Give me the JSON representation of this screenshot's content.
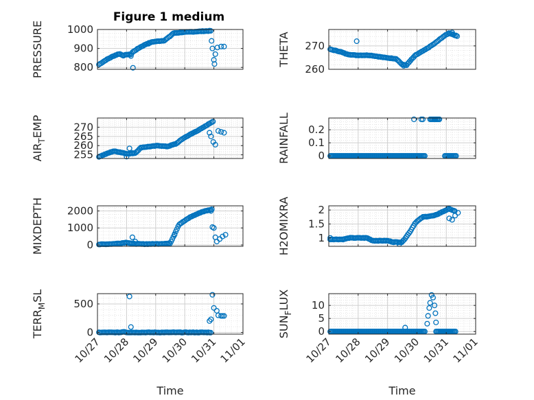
{
  "figure": {
    "title": "Figure 1 medium",
    "marker_color": "#0072BD",
    "x_axis_label": "Time",
    "x_ticks": [
      "10/27",
      "10/28",
      "10/29",
      "10/30",
      "10/31",
      "11/01"
    ]
  },
  "chart_data": [
    {
      "type": "scatter",
      "ylabel": "PRESSURE",
      "title": "Figure 1 medium",
      "xlim": [
        0,
        5
      ],
      "ylim": [
        790,
        1000
      ],
      "yticks": [
        800,
        900,
        1000
      ],
      "anchors": [
        [
          0.05,
          815
        ],
        [
          0.3,
          840
        ],
        [
          0.55,
          860
        ],
        [
          0.75,
          872
        ],
        [
          0.9,
          862
        ],
        [
          1.0,
          868
        ],
        [
          1.15,
          868
        ],
        [
          1.2,
          880
        ],
        [
          1.45,
          905
        ],
        [
          1.7,
          925
        ],
        [
          1.9,
          935
        ],
        [
          2.3,
          942
        ],
        [
          2.5,
          965
        ],
        [
          2.6,
          980
        ],
        [
          2.9,
          985
        ],
        [
          3.5,
          990
        ],
        [
          3.9,
          993
        ]
      ],
      "outliers": [
        [
          1.15,
          860
        ],
        [
          1.22,
          798
        ],
        [
          1.75,
          925
        ],
        [
          3.92,
          940
        ],
        [
          3.95,
          900
        ],
        [
          4.0,
          840
        ],
        [
          4.02,
          818
        ],
        [
          4.05,
          870
        ],
        [
          4.12,
          905
        ],
        [
          4.25,
          910
        ],
        [
          4.35,
          910
        ]
      ],
      "grid": true
    },
    {
      "type": "scatter",
      "ylabel": "THETA",
      "xlim": [
        0,
        5
      ],
      "ylim": [
        260,
        277
      ],
      "yticks": [
        260,
        270
      ],
      "anchors": [
        [
          0.05,
          268.5
        ],
        [
          0.4,
          267.5
        ],
        [
          0.6,
          266.5
        ],
        [
          0.9,
          266
        ],
        [
          1.4,
          266
        ],
        [
          1.9,
          265
        ],
        [
          2.3,
          264.5
        ],
        [
          2.5,
          262
        ],
        [
          2.65,
          261.8
        ],
        [
          2.8,
          264
        ],
        [
          2.95,
          266
        ],
        [
          3.3,
          268.5
        ],
        [
          3.6,
          271
        ],
        [
          3.9,
          274
        ],
        [
          4.1,
          275.5
        ],
        [
          4.3,
          274.5
        ],
        [
          4.4,
          274
        ]
      ],
      "outliers": [
        [
          0.95,
          272
        ],
        [
          2.55,
          261.5
        ],
        [
          4.2,
          275.7
        ]
      ],
      "grid": true
    },
    {
      "type": "scatter",
      "ylabel": "AIR_TEMP",
      "xlim": [
        0,
        5
      ],
      "ylim": [
        253,
        275
      ],
      "yticks": [
        255,
        260,
        265,
        270
      ],
      "anchors": [
        [
          0.05,
          254
        ],
        [
          0.3,
          255.5
        ],
        [
          0.55,
          257
        ],
        [
          0.75,
          256.5
        ],
        [
          1.05,
          255.5
        ],
        [
          1.3,
          256
        ],
        [
          1.5,
          259
        ],
        [
          1.8,
          259.5
        ],
        [
          2.1,
          260
        ],
        [
          2.4,
          259.5
        ],
        [
          2.7,
          261
        ],
        [
          2.95,
          264
        ],
        [
          3.3,
          267
        ],
        [
          3.6,
          269.5
        ],
        [
          4.0,
          273.5
        ]
      ],
      "outliers": [
        [
          1.0,
          254
        ],
        [
          1.1,
          258.5
        ],
        [
          1.2,
          256
        ],
        [
          3.85,
          267
        ],
        [
          3.9,
          265
        ],
        [
          3.98,
          262
        ],
        [
          4.05,
          260.5
        ],
        [
          4.15,
          268
        ],
        [
          4.25,
          267.5
        ],
        [
          4.35,
          267
        ]
      ],
      "grid": true
    },
    {
      "type": "scatter",
      "ylabel": "RAINFALL",
      "xlim": [
        0,
        5
      ],
      "ylim": [
        -0.02,
        0.29
      ],
      "yticks": [
        0,
        0.1,
        0.2
      ],
      "anchors": [
        [
          0.05,
          0
        ],
        [
          3.8,
          0
        ]
      ],
      "segments": [
        [
          [
            0.05,
            0
          ],
          [
            3.3,
            0
          ]
        ],
        [
          [
            3.45,
            0.28
          ],
          [
            3.8,
            0.28
          ]
        ],
        [
          [
            3.95,
            0
          ],
          [
            4.35,
            0
          ]
        ]
      ],
      "outliers": [
        [
          2.9,
          0.28
        ],
        [
          3.15,
          0.28
        ],
        [
          3.2,
          0.28
        ]
      ],
      "grid": true
    },
    {
      "type": "scatter",
      "ylabel": "MIXDEPTH",
      "xlim": [
        0,
        5
      ],
      "ylim": [
        -80,
        2300
      ],
      "yticks": [
        0,
        1000,
        2000
      ],
      "anchors": [
        [
          0.05,
          30
        ],
        [
          0.5,
          60
        ],
        [
          0.8,
          100
        ],
        [
          1.0,
          150
        ],
        [
          1.2,
          80
        ],
        [
          1.5,
          50
        ],
        [
          2.0,
          60
        ],
        [
          2.5,
          90
        ],
        [
          2.8,
          1200
        ],
        [
          3.2,
          1650
        ],
        [
          3.6,
          1950
        ],
        [
          3.95,
          2100
        ]
      ],
      "outliers": [
        [
          1.2,
          450
        ],
        [
          1.3,
          200
        ],
        [
          2.65,
          600
        ],
        [
          3.9,
          2000
        ],
        [
          3.95,
          1050
        ],
        [
          4.0,
          1000
        ],
        [
          4.05,
          450
        ],
        [
          4.1,
          200
        ],
        [
          4.2,
          350
        ],
        [
          4.3,
          500
        ],
        [
          4.4,
          600
        ]
      ],
      "grid": true
    },
    {
      "type": "scatter",
      "ylabel": "H2OMIXRA",
      "xlim": [
        0,
        5
      ],
      "ylim": [
        0.7,
        2.15
      ],
      "yticks": [
        1,
        1.5,
        2
      ],
      "anchors": [
        [
          0.05,
          0.95
        ],
        [
          0.5,
          0.95
        ],
        [
          0.7,
          1.0
        ],
        [
          1.3,
          1.0
        ],
        [
          1.5,
          0.9
        ],
        [
          2.0,
          0.9
        ],
        [
          2.2,
          0.85
        ],
        [
          2.5,
          0.85
        ],
        [
          2.75,
          1.2
        ],
        [
          2.95,
          1.55
        ],
        [
          3.2,
          1.75
        ],
        [
          3.6,
          1.8
        ],
        [
          3.9,
          1.95
        ],
        [
          4.1,
          2.05
        ],
        [
          4.3,
          1.95
        ]
      ],
      "outliers": [
        [
          0.05,
          1.0
        ],
        [
          2.4,
          0.78
        ],
        [
          4.1,
          1.7
        ],
        [
          4.2,
          1.65
        ],
        [
          4.3,
          1.8
        ],
        [
          4.4,
          1.9
        ]
      ],
      "grid": true
    },
    {
      "type": "scatter",
      "ylabel": "TERR_MSL",
      "xlim": [
        0,
        5
      ],
      "ylim": [
        -30,
        680
      ],
      "yticks": [
        0,
        500
      ],
      "anchors": [
        [
          0.05,
          0
        ],
        [
          0.8,
          0
        ],
        [
          0.9,
          15
        ],
        [
          1.0,
          0
        ],
        [
          3.75,
          0
        ],
        [
          3.9,
          0
        ]
      ],
      "outliers": [
        [
          1.1,
          630
        ],
        [
          1.15,
          95
        ],
        [
          3.85,
          200
        ],
        [
          3.9,
          230
        ],
        [
          3.95,
          660
        ],
        [
          4.0,
          430
        ],
        [
          4.1,
          380
        ],
        [
          4.15,
          300
        ],
        [
          4.25,
          290
        ],
        [
          4.3,
          290
        ],
        [
          4.35,
          290
        ]
      ],
      "grid": true
    },
    {
      "type": "scatter",
      "ylabel": "SUN_FLUX",
      "xlim": [
        0,
        5
      ],
      "ylim": [
        -1,
        14.5
      ],
      "yticks": [
        0,
        5,
        10
      ],
      "anchors": [
        [
          0.05,
          0
        ],
        [
          3.4,
          0
        ]
      ],
      "segments": [
        [
          [
            0.05,
            0
          ],
          [
            3.3,
            0
          ]
        ],
        [
          [
            3.65,
            0
          ],
          [
            4.35,
            0
          ]
        ]
      ],
      "outliers": [
        [
          2.6,
          1.5
        ],
        [
          3.35,
          3
        ],
        [
          3.38,
          6
        ],
        [
          3.42,
          9
        ],
        [
          3.45,
          11
        ],
        [
          3.5,
          14
        ],
        [
          3.55,
          13
        ],
        [
          3.6,
          10
        ],
        [
          3.63,
          7
        ],
        [
          3.65,
          3.5
        ]
      ],
      "grid": true
    }
  ],
  "axis_text": {
    "pressure_ylabel": "PRESSURE",
    "theta_ylabel": "THETA",
    "airtemp_ylabel_main": "AIR",
    "airtemp_ylabel_sub": "T",
    "airtemp_ylabel_tail": "EMP",
    "rainfall_ylabel": "RAINFALL",
    "mixdepth_ylabel": "MIXDEPTH",
    "h2o_ylabel": "H2OMIXRA",
    "terr_ylabel_main": "TERR",
    "terr_ylabel_sub": "M",
    "terr_ylabel_tail": "SL",
    "sun_ylabel_main": "SUN",
    "sun_ylabel_sub": "F",
    "sun_ylabel_tail": "LUX"
  }
}
